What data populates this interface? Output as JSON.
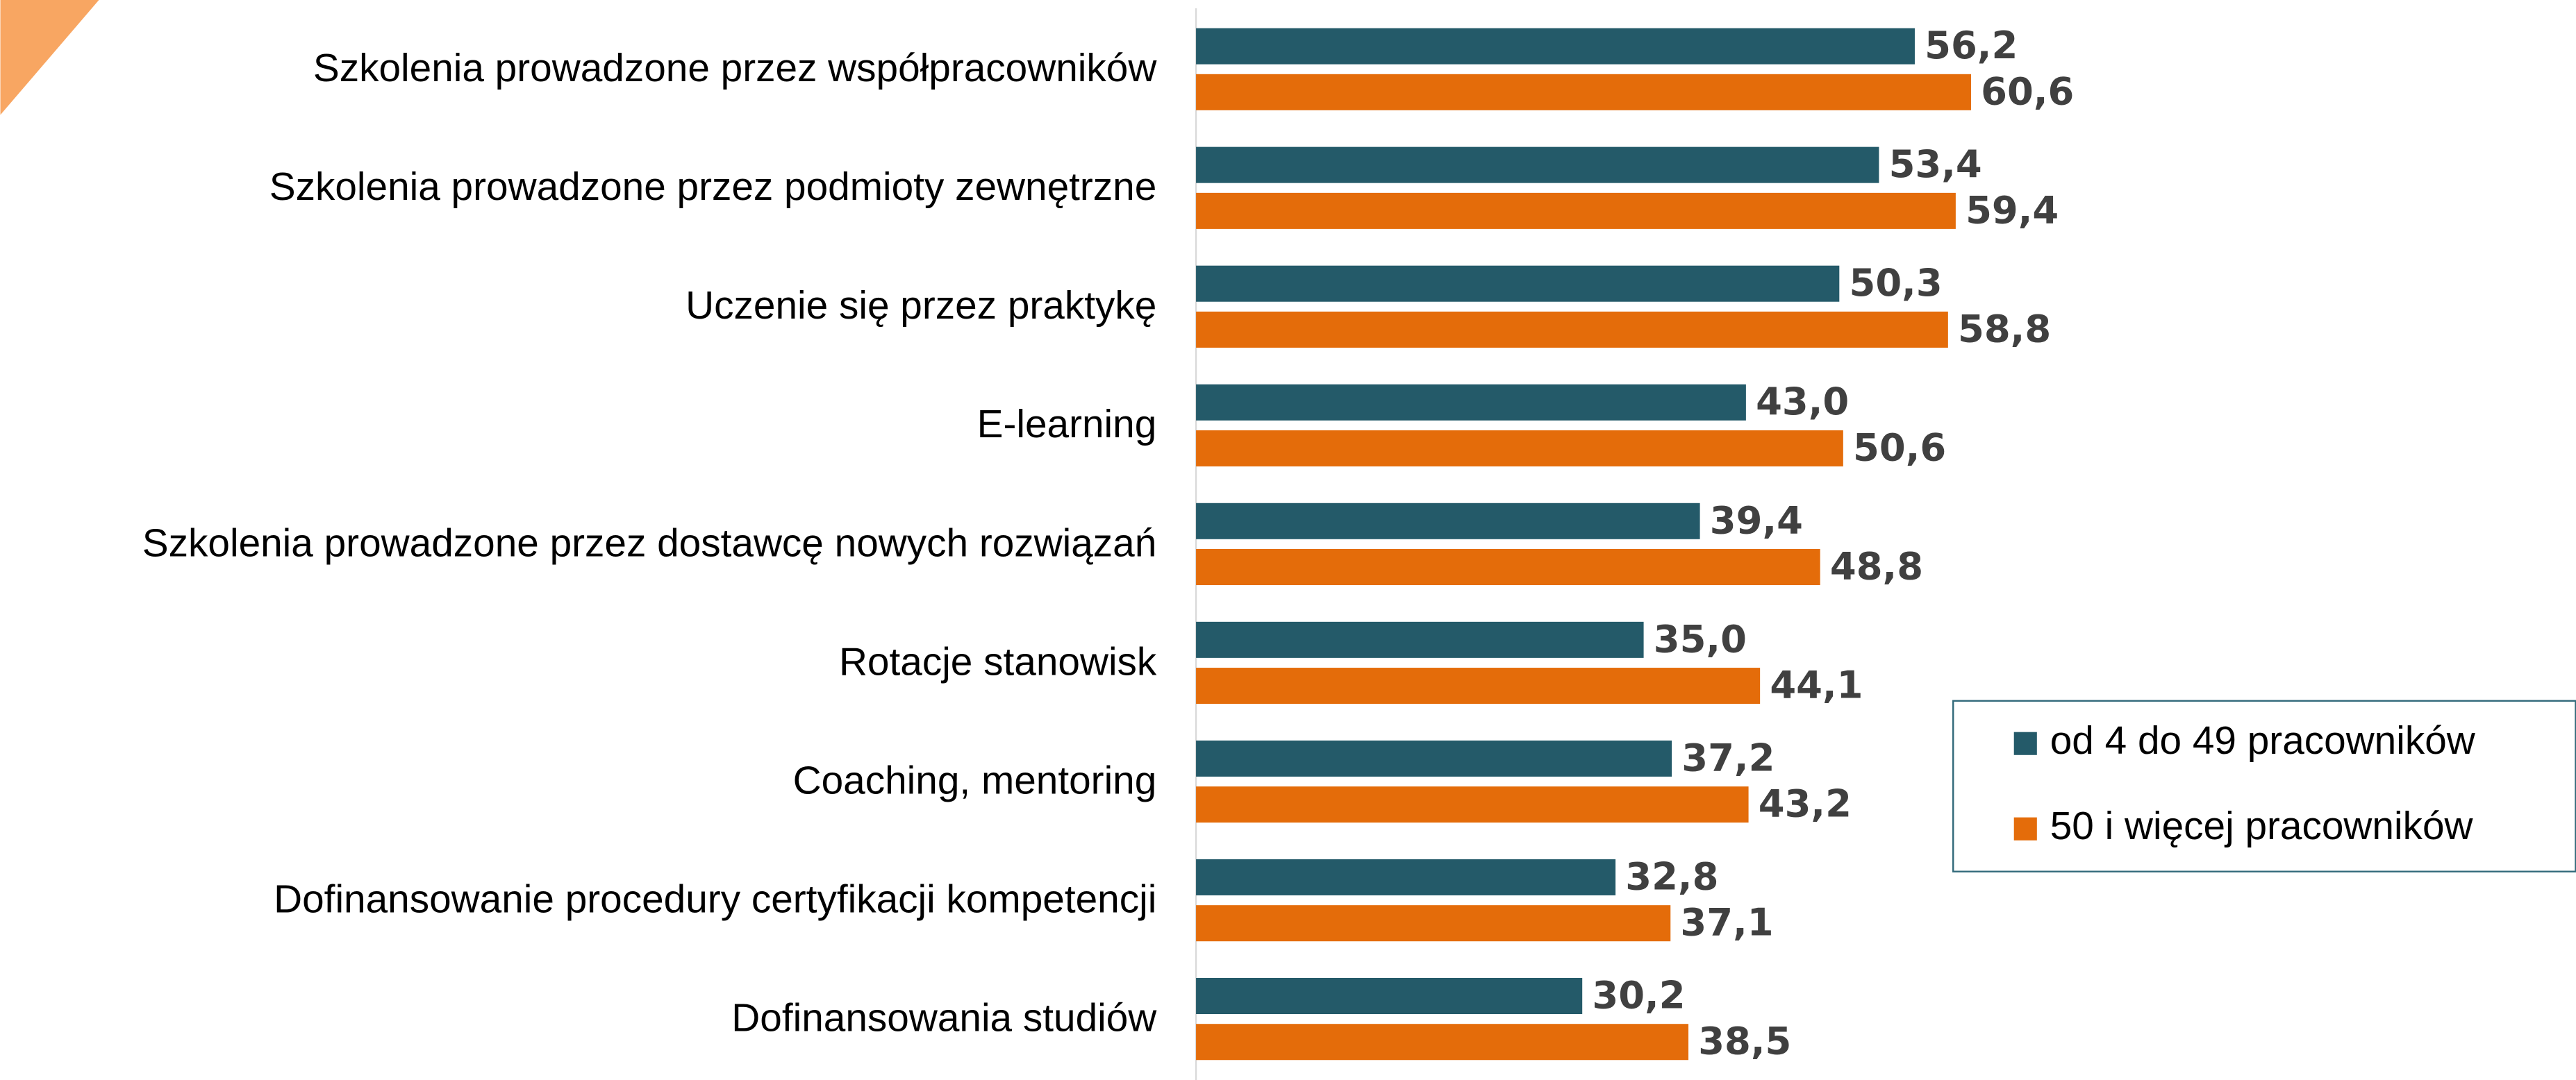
{
  "chart_data": {
    "type": "bar",
    "orientation": "horizontal",
    "categories": [
      "Szkolenia prowadzone przez współpracowników",
      "Szkolenia prowadzone przez podmioty zewnętrzne",
      "Uczenie się przez praktykę",
      "E-learning",
      "Szkolenia prowadzone przez dostawcę nowych rozwiązań",
      "Rotacje stanowisk",
      "Coaching, mentoring",
      "Dofinansowanie procedury certyfikacji kompetencji",
      "Dofinansowania studiów"
    ],
    "series": [
      {
        "name": "od 4 do 49 pracowników",
        "color": "#245a69",
        "values": [
          56.2,
          53.4,
          50.3,
          43.0,
          39.4,
          35.0,
          37.2,
          32.8,
          30.2
        ],
        "value_labels": [
          "56,2",
          "53,4",
          "50,3",
          "43,0",
          "39,4",
          "35,0",
          "37,2",
          "32,8",
          "30,2"
        ]
      },
      {
        "name": "50 i więcej pracowników",
        "color": "#e46c0a",
        "values": [
          60.6,
          59.4,
          58.8,
          50.6,
          48.8,
          44.1,
          43.2,
          37.1,
          38.5
        ],
        "value_labels": [
          "60,6",
          "59,4",
          "58,8",
          "50,6",
          "48,8",
          "44,1",
          "43,2",
          "37,1",
          "38,5"
        ]
      }
    ],
    "xlim": [
      0,
      108
    ],
    "legend": "right"
  }
}
